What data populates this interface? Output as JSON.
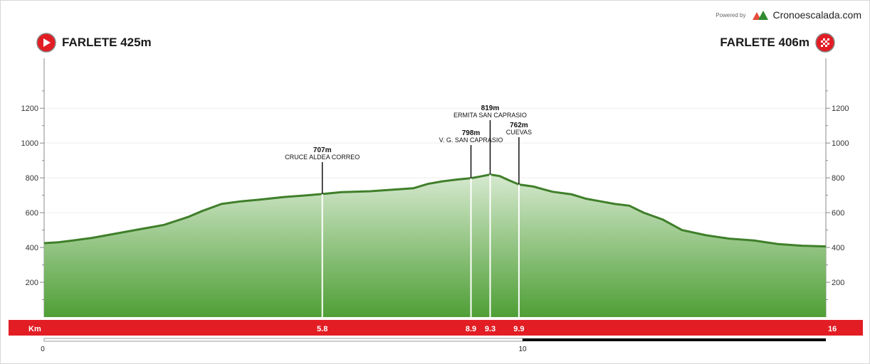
{
  "brand": {
    "powered": "Powered by",
    "site": "Cronoescalada.com",
    "logo_colors": [
      "#e74c3c",
      "#2e8b2e"
    ]
  },
  "start": {
    "label": "FARLETE 425m",
    "icon": "play-icon",
    "color": "#e21d24"
  },
  "finish": {
    "label": "FARLETE 406m",
    "icon": "checkered-flag-icon",
    "color": "#e21d24"
  },
  "colors": {
    "fill_top": "#d6e9cf",
    "fill_bottom": "#4f9f36",
    "outline": "#3f7f2a",
    "km_bar": "#e21d24",
    "progress": "#000000"
  },
  "chart_data": {
    "type": "area",
    "title": "",
    "xlabel": "Km",
    "ylabel": "",
    "xlim": [
      0,
      16.3
    ],
    "ylim": [
      0,
      1200
    ],
    "yticks": [
      200,
      400,
      600,
      800,
      1000,
      1200
    ],
    "grid": true,
    "x": [
      0,
      0.3,
      0.6,
      1.0,
      1.5,
      2.0,
      2.5,
      3.0,
      3.3,
      3.7,
      4.1,
      4.5,
      5.0,
      5.5,
      5.8,
      6.2,
      6.8,
      7.2,
      7.7,
      8.0,
      8.3,
      8.6,
      8.9,
      9.1,
      9.3,
      9.5,
      9.7,
      9.9,
      10.2,
      10.6,
      11.0,
      11.3,
      11.6,
      11.9,
      12.2,
      12.5,
      12.9,
      13.3,
      13.8,
      14.3,
      14.8,
      15.3,
      15.8,
      16.3
    ],
    "y": [
      425,
      430,
      440,
      455,
      480,
      505,
      530,
      575,
      610,
      650,
      665,
      675,
      690,
      700,
      707,
      718,
      723,
      731,
      740,
      765,
      780,
      790,
      798,
      808,
      819,
      810,
      785,
      762,
      750,
      720,
      705,
      680,
      665,
      650,
      640,
      600,
      560,
      500,
      470,
      450,
      440,
      420,
      410,
      406
    ],
    "points": [
      {
        "km": 5.8,
        "km_label": "5.8",
        "elevation": "707m",
        "name": "CRUCE ALDEA CORREO"
      },
      {
        "km": 8.9,
        "km_label": "8.9",
        "elevation": "798m",
        "name": "V. G. SAN CAPRASIO"
      },
      {
        "km": 9.3,
        "km_label": "9.3",
        "elevation": "819m",
        "name": "ERMITA SAN CAPRASIO"
      },
      {
        "km": 9.9,
        "km_label": "9.9",
        "elevation": "762m",
        "name": "CUEVAS"
      }
    ],
    "km_axis": {
      "label": "Km",
      "end_label": "16"
    },
    "scale_bar": {
      "start": "0",
      "mid": "10"
    }
  }
}
